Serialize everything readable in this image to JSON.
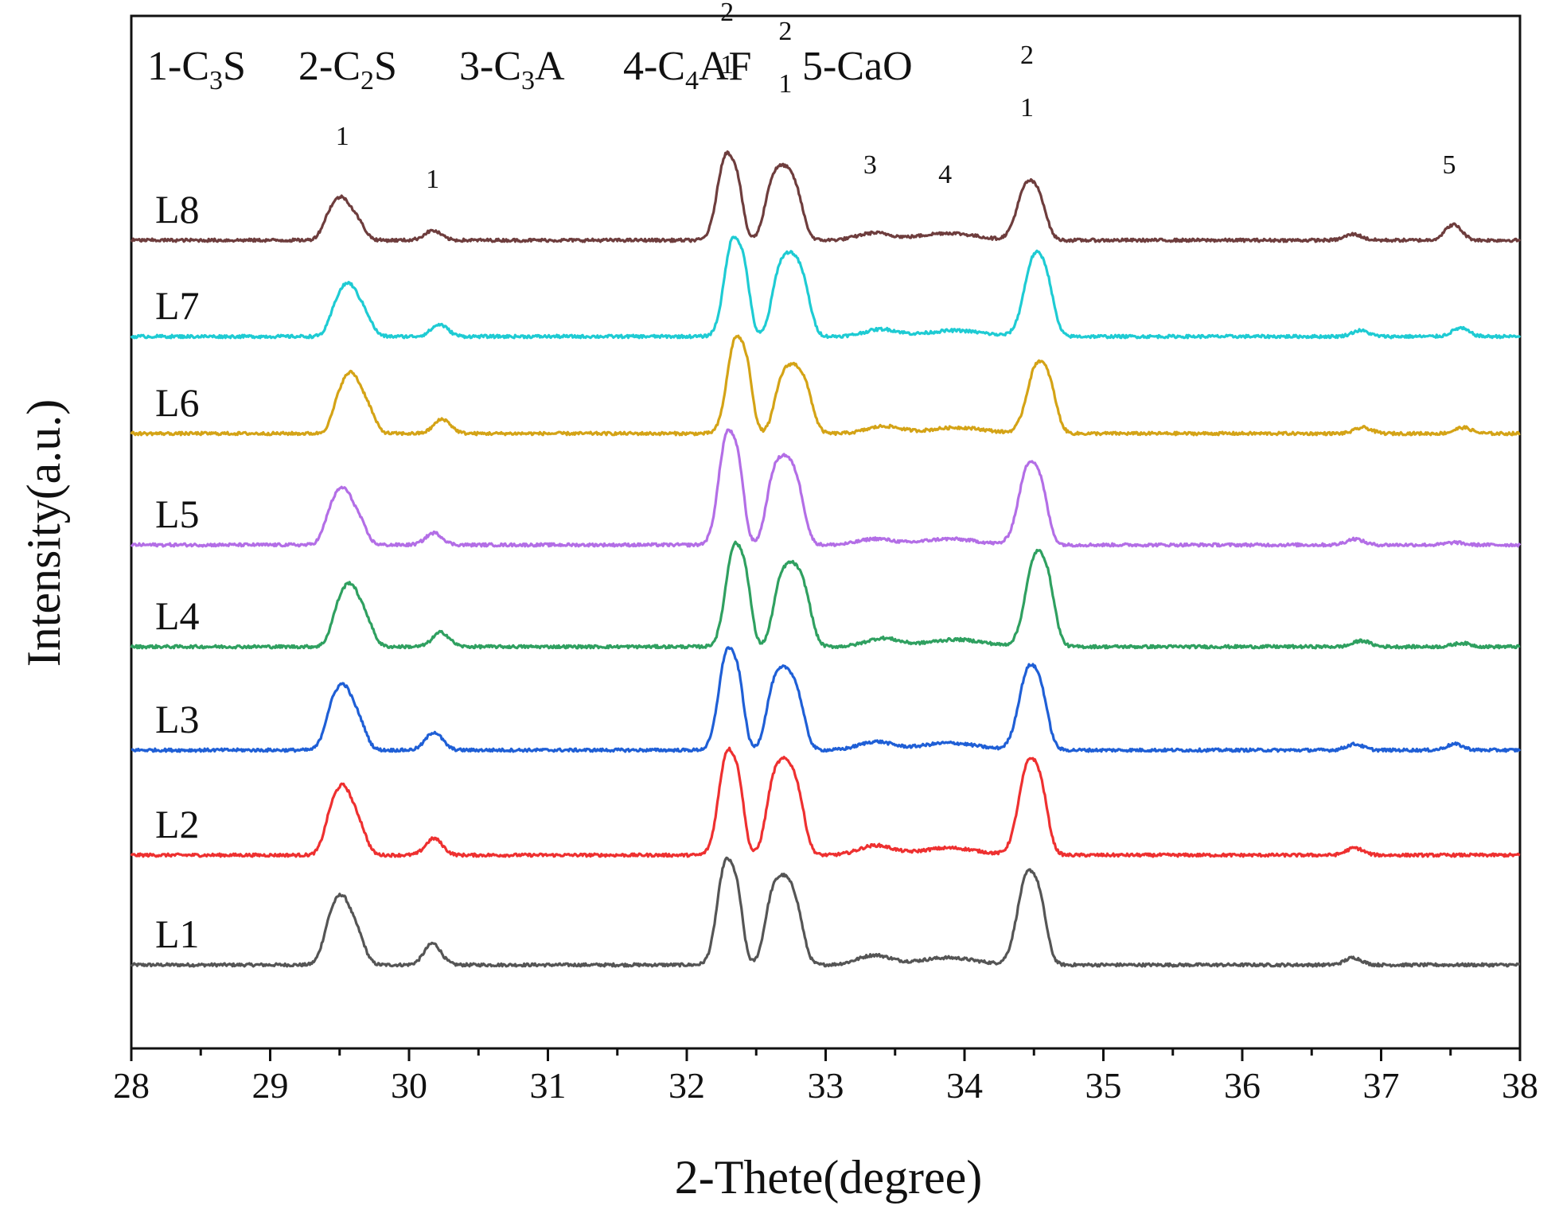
{
  "chart_data": {
    "type": "line",
    "xlabel": "2-Thete(degree)",
    "ylabel": "Intensity(a.u.)",
    "xlim": [
      28,
      38
    ],
    "x_ticks": [
      "28",
      "29",
      "30",
      "31",
      "32",
      "33",
      "34",
      "35",
      "36",
      "37",
      "38"
    ],
    "legend": [
      {
        "num": "1",
        "pre": "C",
        "sub": "3",
        "post": "S"
      },
      {
        "num": "2",
        "pre": "C",
        "sub": "2",
        "post": "S"
      },
      {
        "num": "3",
        "pre": "C",
        "sub": "3",
        "post": "A"
      },
      {
        "num": "4",
        "pre": "C",
        "sub": "4",
        "post": "AF"
      },
      {
        "num": "5",
        "pre": "CaO",
        "sub": "",
        "post": ""
      }
    ],
    "peak_labels": [
      {
        "x": 29.52,
        "text": "1",
        "rel": 0.3
      },
      {
        "x": 30.17,
        "text": "1",
        "rel": 0.12
      },
      {
        "x": 32.29,
        "text": "1",
        "rel": 0.6
      },
      {
        "x": 32.29,
        "text": "2",
        "rel": 0.82
      },
      {
        "x": 32.71,
        "text": "1",
        "rel": 0.52
      },
      {
        "x": 32.71,
        "text": "2",
        "rel": 0.74
      },
      {
        "x": 33.32,
        "text": "3",
        "rel": 0.18
      },
      {
        "x": 33.86,
        "text": "4",
        "rel": 0.14
      },
      {
        "x": 34.45,
        "text": "1",
        "rel": 0.42
      },
      {
        "x": 34.45,
        "text": "2",
        "rel": 0.64
      },
      {
        "x": 37.49,
        "text": "5",
        "rel": 0.18
      }
    ],
    "series": [
      {
        "name": "L1",
        "color": "#555555",
        "shift": 0.0,
        "amps": [
          0.55,
          0.18,
          0.85,
          0.67,
          0.08,
          0.06,
          0.73,
          0.06,
          0.0
        ]
      },
      {
        "name": "L2",
        "color": "#ee3030",
        "shift": 0.01,
        "amps": [
          0.55,
          0.14,
          0.85,
          0.72,
          0.08,
          0.06,
          0.75,
          0.06,
          0.0
        ]
      },
      {
        "name": "L3",
        "color": "#1f5fd6",
        "shift": 0.01,
        "amps": [
          0.52,
          0.15,
          0.82,
          0.62,
          0.07,
          0.06,
          0.66,
          0.05,
          0.05
        ]
      },
      {
        "name": "L4",
        "color": "#2fa060",
        "shift": 0.06,
        "amps": [
          0.5,
          0.12,
          0.83,
          0.63,
          0.07,
          0.06,
          0.74,
          0.05,
          0.03
        ]
      },
      {
        "name": "L5",
        "color": "#b36ee6",
        "shift": 0.01,
        "amps": [
          0.45,
          0.1,
          0.92,
          0.67,
          0.05,
          0.05,
          0.65,
          0.05,
          0.02
        ]
      },
      {
        "name": "L6",
        "color": "#d4a316",
        "shift": 0.07,
        "amps": [
          0.48,
          0.12,
          0.78,
          0.52,
          0.06,
          0.05,
          0.56,
          0.05,
          0.05
        ]
      },
      {
        "name": "L7",
        "color": "#1ecbd3",
        "shift": 0.05,
        "amps": [
          0.42,
          0.1,
          0.8,
          0.63,
          0.06,
          0.05,
          0.65,
          0.05,
          0.07
        ]
      },
      {
        "name": "L8",
        "color": "#6e3d3d",
        "shift": 0.0,
        "amps": [
          0.34,
          0.08,
          0.7,
          0.56,
          0.06,
          0.06,
          0.46,
          0.05,
          0.13
        ]
      }
    ]
  }
}
